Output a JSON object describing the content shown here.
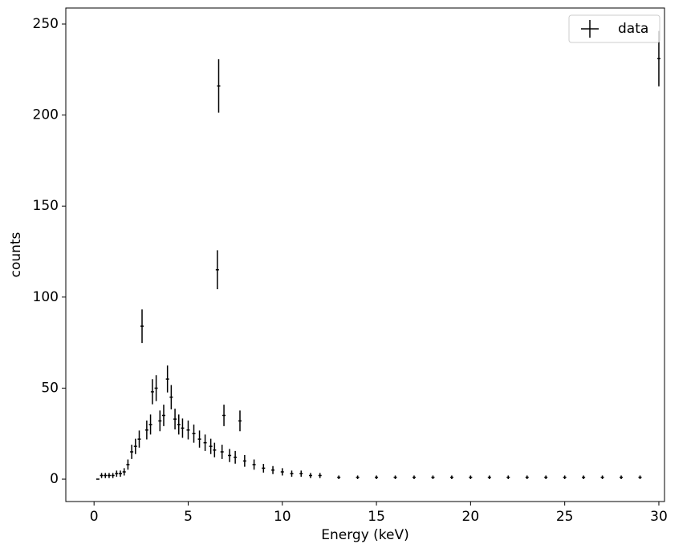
{
  "chart_data": {
    "type": "errorbar",
    "xlabel": "Energy (keV)",
    "ylabel": "counts",
    "legend": "upper right",
    "series": [
      {
        "name": "data",
        "color": "#000000",
        "x": [
          0.2,
          0.4,
          0.6,
          0.8,
          1.0,
          1.2,
          1.4,
          1.6,
          1.8,
          2.0,
          2.2,
          2.4,
          2.55,
          2.8,
          3.0,
          3.1,
          3.3,
          3.5,
          3.7,
          3.9,
          4.1,
          4.3,
          4.5,
          4.7,
          5.0,
          5.3,
          5.6,
          5.9,
          6.2,
          6.4,
          6.55,
          6.62,
          6.8,
          6.9,
          7.2,
          7.5,
          7.75,
          8.0,
          8.5,
          9,
          9.5,
          10,
          10.5,
          11,
          11.5,
          12,
          13,
          14,
          15,
          16,
          17,
          18,
          19,
          20,
          21,
          22,
          23,
          24,
          25,
          26,
          27,
          28,
          29,
          30
        ],
        "values": [
          0,
          2,
          2,
          2,
          2,
          3,
          3,
          4,
          8,
          15,
          18,
          22,
          84,
          27,
          30,
          48,
          50,
          32,
          35,
          55,
          45,
          33,
          30,
          28,
          27,
          25,
          22,
          20,
          18,
          16,
          115,
          216,
          15,
          35,
          13,
          12,
          32,
          10,
          8,
          6,
          5,
          4,
          3,
          3,
          2,
          2,
          1,
          1,
          1,
          1,
          1,
          1,
          1,
          1,
          1,
          1,
          1,
          1,
          1,
          1,
          1,
          1,
          1,
          231
        ],
        "yerr": [
          0,
          1.4,
          1.4,
          1.4,
          1.4,
          1.7,
          1.7,
          2,
          2.8,
          3.9,
          4.2,
          4.7,
          9.2,
          5.2,
          5.5,
          6.9,
          7.1,
          5.7,
          5.9,
          7.4,
          6.7,
          5.7,
          5.5,
          5.3,
          5.2,
          5,
          4.7,
          4.5,
          4.2,
          4,
          10.7,
          14.7,
          3.9,
          5.9,
          3.6,
          3.5,
          5.7,
          3.2,
          2.8,
          2.4,
          2.2,
          2,
          1.7,
          1.7,
          1.4,
          1.4,
          1,
          1,
          1,
          1,
          1,
          1,
          1,
          1,
          1,
          1,
          1,
          1,
          1,
          1,
          1,
          1,
          1,
          15.2
        ]
      }
    ],
    "xlim": [
      -1.5,
      30.3
    ],
    "ylim": [
      -12.3,
      258.8
    ],
    "xticks": [
      0,
      5,
      10,
      15,
      20,
      25,
      30
    ],
    "yticks": [
      0,
      50,
      100,
      150,
      200,
      250
    ]
  }
}
